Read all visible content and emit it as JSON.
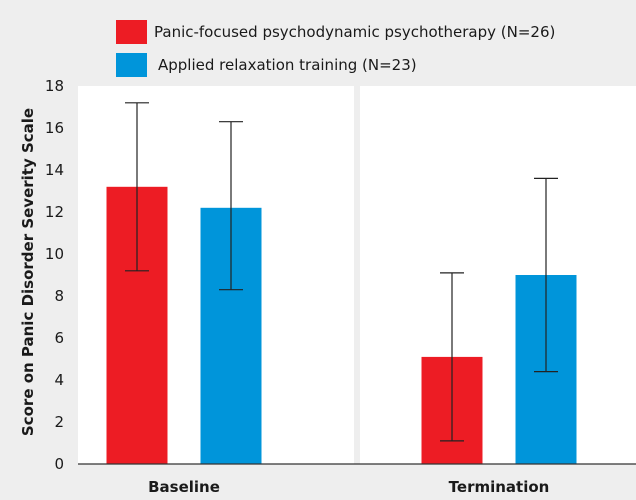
{
  "chart_data": {
    "type": "bar",
    "categories": [
      "Baseline",
      "Termination"
    ],
    "series": [
      {
        "name": "Panic-focused psychodynamic psychotherapy (N=26)",
        "color": "#ed1c24",
        "values": [
          13.2,
          5.1
        ],
        "error_low": [
          9.2,
          1.1
        ],
        "error_high": [
          17.2,
          9.1
        ]
      },
      {
        "name": "Applied relaxation training (N=23)",
        "color": "#0095da",
        "values": [
          12.2,
          9.0
        ],
        "error_low": [
          8.3,
          4.4
        ],
        "error_high": [
          16.3,
          13.6
        ]
      }
    ],
    "ylabel": "Score on Panic Disorder Severity Scale",
    "ylim": [
      0,
      18
    ],
    "yticks": [
      0,
      2,
      4,
      6,
      8,
      10,
      12,
      14,
      16,
      18
    ],
    "background": "#eeeeee",
    "grid": false,
    "legend_position": "top"
  }
}
